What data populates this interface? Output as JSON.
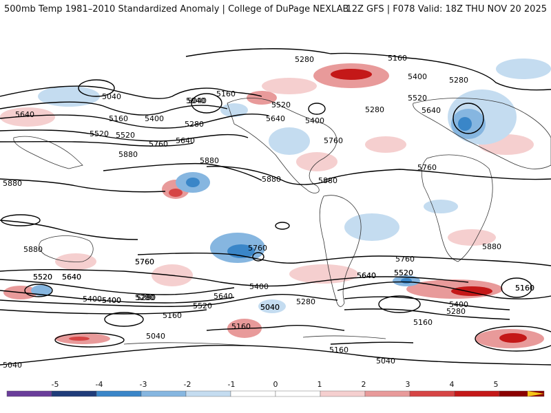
{
  "header": {
    "left_title": "500mb Temp 1981–2010 Standardized Anomaly | College of DuPage NEXLAB",
    "right_title": "12Z GFS | F078 Valid: 18Z THU NOV 20 2025"
  },
  "map": {
    "contour_labels": [
      "5280",
      "5160",
      "5400",
      "5040",
      "5160",
      "5280",
      "5640",
      "5520",
      "5640",
      "5400",
      "5160",
      "5040",
      "5520",
      "5280",
      "5640",
      "5520",
      "5400",
      "5280",
      "5760",
      "5880",
      "5880",
      "5880",
      "5880",
      "5760",
      "5880",
      "5760",
      "5640",
      "5520",
      "5400",
      "5280",
      "5640",
      "5520",
      "5400",
      "5280",
      "5160",
      "5040",
      "5040",
      "5160",
      "5040",
      "5160",
      "5520",
      "5760",
      "5640",
      "5400",
      "5280",
      "5160",
      "5040",
      "5880",
      "5760",
      "5160",
      "5280",
      "5400",
      "5520",
      "5640",
      "5760",
      "5160",
      "5040",
      "5040",
      "5880",
      "5760",
      "5640",
      "5520",
      "5400",
      "5280",
      "5520",
      "5640"
    ]
  },
  "colorbar": {
    "labels": [
      "-5",
      "-4",
      "-3",
      "-2",
      "-1",
      "0",
      "1",
      "2",
      "3",
      "4",
      "5"
    ],
    "colors": {
      "neg5": "#6a3d9a",
      "neg4": "#1f3c7a",
      "neg3": "#3a86c8",
      "neg2": "#86b6e0",
      "neg1": "#c4dcf0",
      "zero": "#ffffff",
      "pos1": "#f5cfcf",
      "pos2": "#e89a9a",
      "pos3": "#d64545",
      "pos4": "#c41818",
      "pos5": "#8b0000",
      "pos_tip": "#f5c518"
    }
  }
}
